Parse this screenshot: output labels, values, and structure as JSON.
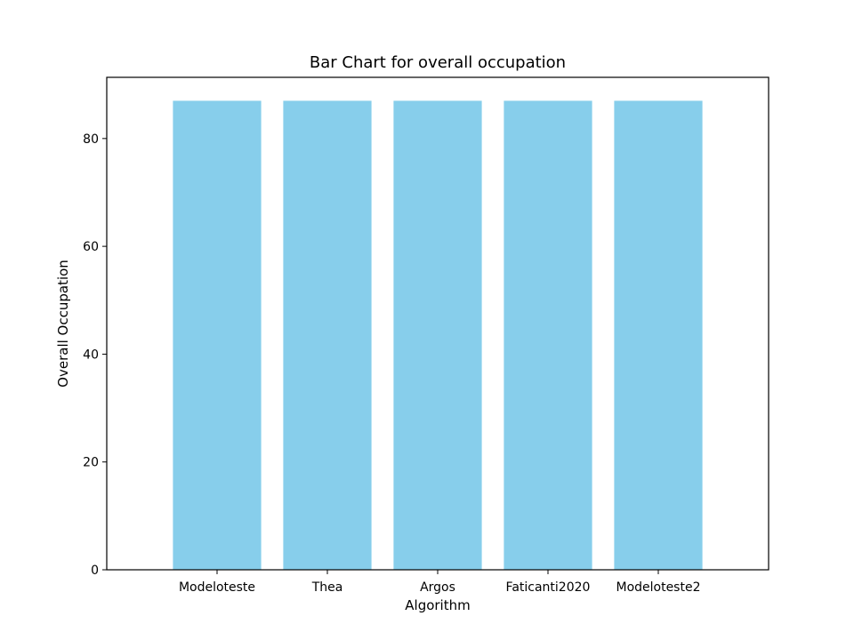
{
  "chart_data": {
    "type": "bar",
    "title": "Bar Chart for overall occupation",
    "xlabel": "Algorithm",
    "ylabel": "Overall Occupation",
    "categories": [
      "Modeloteste",
      "Thea",
      "Argos",
      "Faticanti2020",
      "Modeloteste2"
    ],
    "values": [
      87,
      87,
      87,
      87,
      87
    ],
    "ylim": [
      0,
      91.35
    ],
    "yticks": [
      0,
      20,
      40,
      60,
      80
    ],
    "grid": false,
    "legend": "none",
    "bar_color": "#87ceeb"
  }
}
